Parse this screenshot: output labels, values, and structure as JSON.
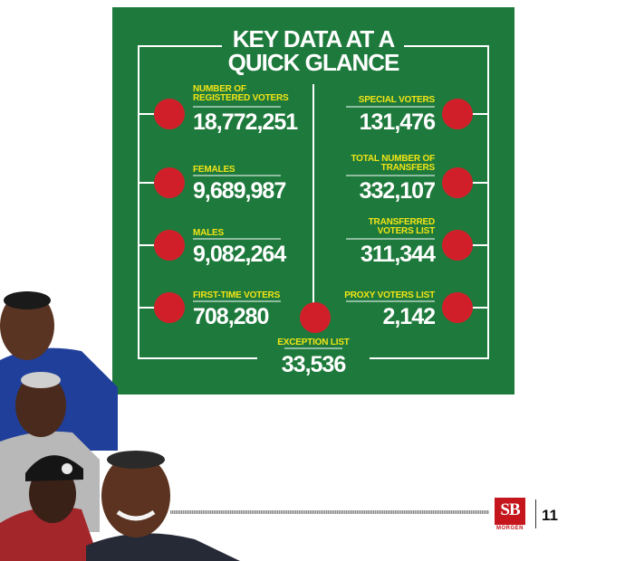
{
  "infographic": {
    "title_line1": "KEY DATA AT A",
    "title_line2": "QUICK GLANCE",
    "stats_left": [
      {
        "label_line1": "NUMBER OF",
        "label_line2": "REGISTERED VOTERS",
        "value": "18,772,251"
      },
      {
        "label_line1": "FEMALES",
        "label_line2": "",
        "value": "9,689,987"
      },
      {
        "label_line1": "MALES",
        "label_line2": "",
        "value": "9,082,264"
      },
      {
        "label_line1": "FIRST-TIME VOTERS",
        "label_line2": "",
        "value": "708,280"
      }
    ],
    "stats_right": [
      {
        "label_line1": "SPECIAL VOTERS",
        "label_line2": "",
        "value": "131,476"
      },
      {
        "label_line1": "TOTAL NUMBER OF",
        "label_line2": "TRANSFERS",
        "value": "332,107"
      },
      {
        "label_line1": "TRANSFERRED",
        "label_line2": "VOTERS LIST",
        "value": "311,344"
      },
      {
        "label_line1": "PROXY VOTERS LIST",
        "label_line2": "",
        "value": "2,142"
      }
    ],
    "stat_center": {
      "label": "EXCEPTION LIST",
      "value": "33,536"
    }
  },
  "footer": {
    "logo_text": "SB",
    "logo_subtext": "MORGEN",
    "page_number": "11"
  },
  "colors": {
    "panel_green": "#1e7a3c",
    "dot_red": "#d11f2a",
    "label_yellow": "#f2e416",
    "brand_red": "#c4161c"
  }
}
